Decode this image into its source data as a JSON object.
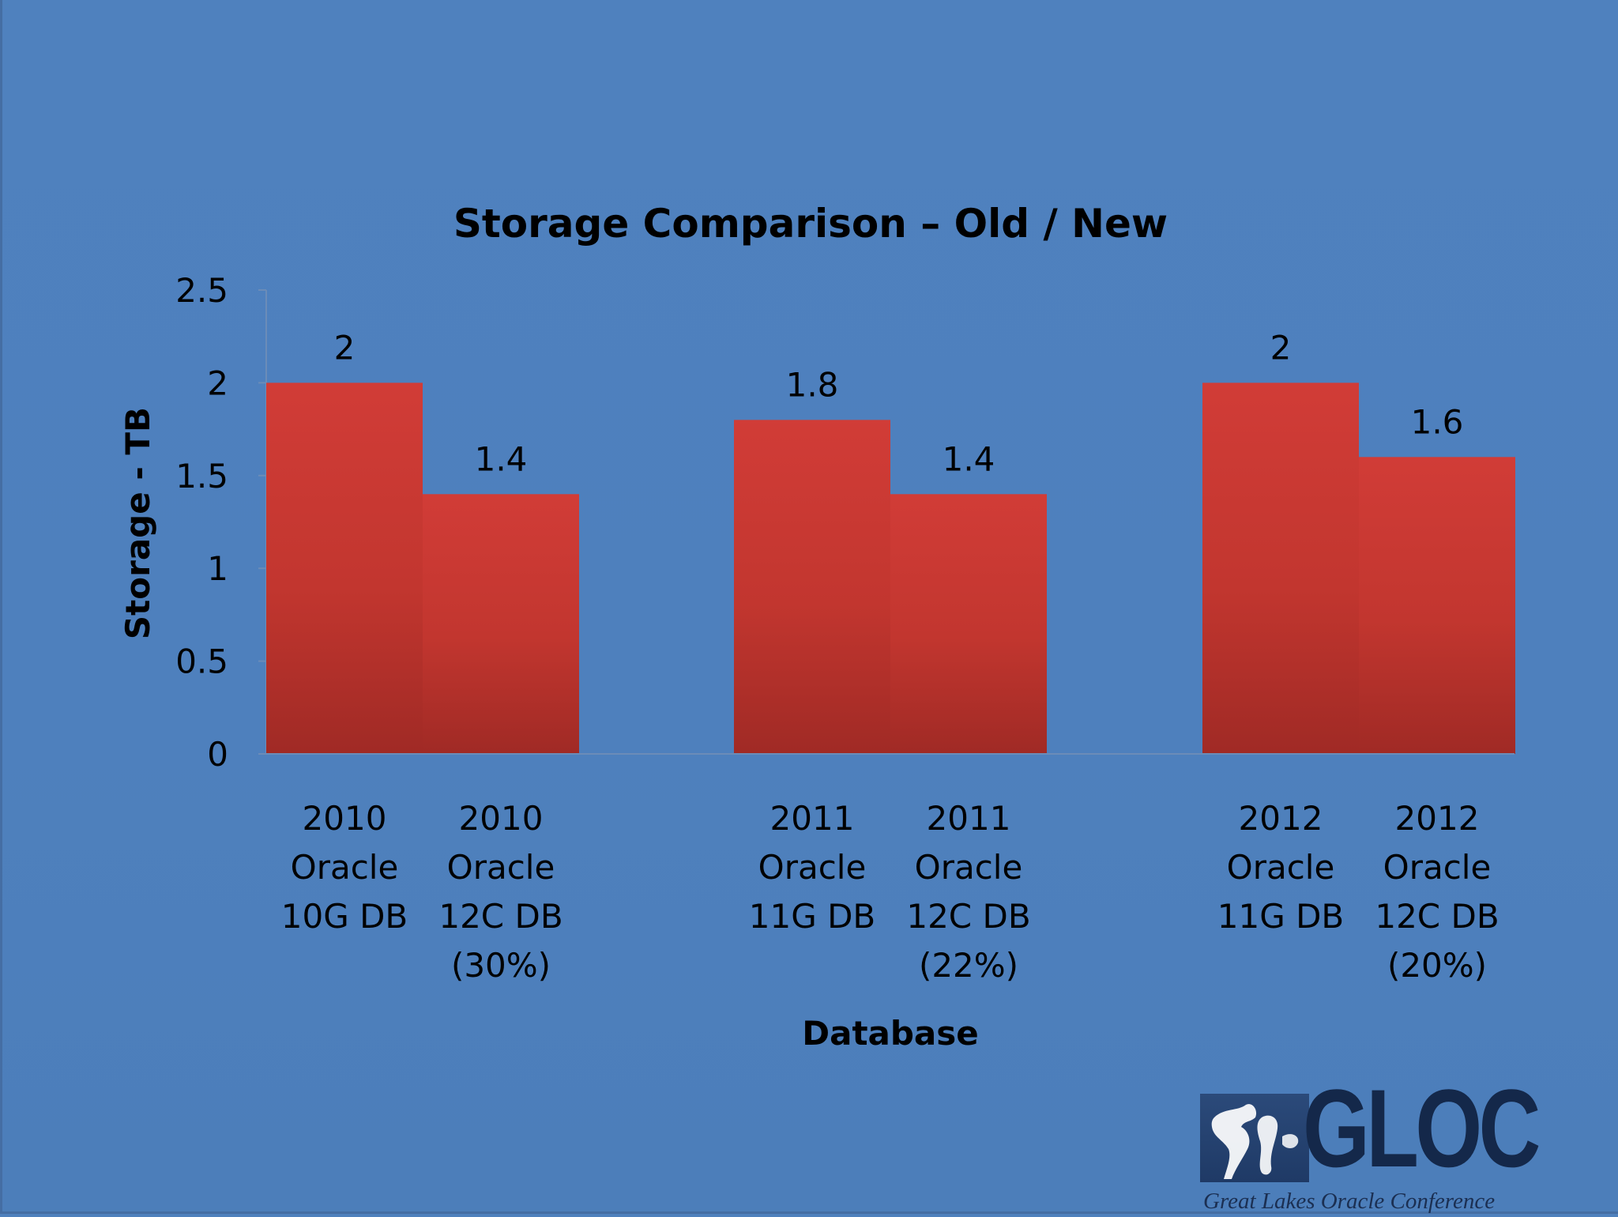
{
  "chart_data": {
    "type": "bar",
    "title": "Storage Comparison – Old / New",
    "xlabel": "Database",
    "ylabel": "Storage - TB",
    "ylim": [
      0,
      2.5
    ],
    "yticks": [
      "0",
      "0.5",
      "1",
      "1.5",
      "2",
      "2.5"
    ],
    "grid": false,
    "legend": "none",
    "categories": [
      [
        "2010",
        "Oracle",
        "10G DB"
      ],
      [
        "2010",
        "Oracle",
        "12C DB",
        "(30%)"
      ],
      [
        "2011",
        "Oracle",
        "11G DB"
      ],
      [
        "2011",
        "Oracle",
        "12C DB",
        "(22%)"
      ],
      [
        "2012",
        "Oracle",
        "11G DB"
      ],
      [
        "2012",
        "Oracle",
        "12C DB",
        "(20%)"
      ]
    ],
    "values": [
      2,
      1.4,
      1.8,
      1.4,
      2,
      1.6
    ],
    "data_labels": [
      "2",
      "1.4",
      "1.8",
      "1.4",
      "2",
      "1.6"
    ],
    "bar_color": "#c0392b"
  },
  "logo": {
    "name": "GLOC",
    "subtitle": "Great Lakes Oracle Conference",
    "icon": "great-lakes-map-icon"
  }
}
